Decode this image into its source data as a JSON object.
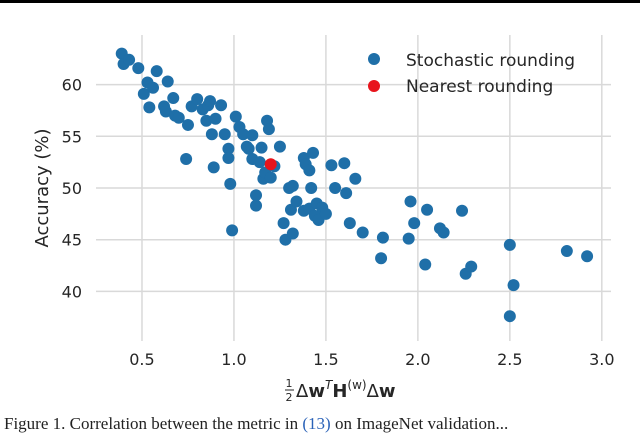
{
  "chart_data": {
    "type": "scatter",
    "title": "",
    "xlabel": {
      "frac_num": "1",
      "frac_den": "2",
      "pre": "Δ",
      "w1": "w",
      "sup1": "T",
      "H": "H",
      "sup2": "(w)",
      "post": "Δ",
      "w2": "w"
    },
    "ylabel": "Accuracy (%)",
    "xlim": [
      0.25,
      3.05
    ],
    "ylim": [
      35.2,
      64.8
    ],
    "x_ticks": [
      0.5,
      1.0,
      1.5,
      2.0,
      2.5,
      3.0
    ],
    "x_tick_labels": [
      "0.5",
      "1.0",
      "1.5",
      "2.0",
      "2.5",
      "3.0"
    ],
    "y_ticks": [
      40,
      45,
      50,
      55,
      60
    ],
    "y_tick_labels": [
      "40",
      "45",
      "50",
      "55",
      "60"
    ],
    "grid": true,
    "legend_position": "top-right",
    "series": [
      {
        "name": "Stochastic rounding",
        "color": "#1f6fa8",
        "points": [
          [
            0.39,
            63.0
          ],
          [
            0.4,
            62.0
          ],
          [
            0.43,
            62.4
          ],
          [
            0.48,
            61.6
          ],
          [
            0.51,
            59.1
          ],
          [
            0.53,
            60.2
          ],
          [
            0.54,
            57.8
          ],
          [
            0.56,
            59.7
          ],
          [
            0.58,
            61.3
          ],
          [
            0.62,
            57.9
          ],
          [
            0.63,
            57.4
          ],
          [
            0.64,
            60.3
          ],
          [
            0.67,
            58.7
          ],
          [
            0.68,
            57.0
          ],
          [
            0.7,
            56.8
          ],
          [
            0.74,
            52.8
          ],
          [
            0.75,
            56.1
          ],
          [
            0.77,
            57.9
          ],
          [
            0.8,
            58.6
          ],
          [
            0.83,
            57.6
          ],
          [
            0.85,
            56.5
          ],
          [
            0.86,
            58.0
          ],
          [
            0.87,
            58.4
          ],
          [
            0.88,
            55.2
          ],
          [
            0.89,
            52.0
          ],
          [
            0.9,
            56.7
          ],
          [
            0.93,
            58.0
          ],
          [
            0.95,
            55.2
          ],
          [
            0.97,
            53.8
          ],
          [
            0.97,
            52.9
          ],
          [
            0.98,
            50.4
          ],
          [
            0.99,
            45.9
          ],
          [
            1.01,
            56.9
          ],
          [
            1.03,
            55.9
          ],
          [
            1.05,
            55.2
          ],
          [
            1.07,
            54.0
          ],
          [
            1.08,
            53.8
          ],
          [
            1.1,
            52.8
          ],
          [
            1.1,
            55.1
          ],
          [
            1.12,
            49.3
          ],
          [
            1.12,
            48.3
          ],
          [
            1.14,
            52.5
          ],
          [
            1.15,
            53.9
          ],
          [
            1.16,
            50.9
          ],
          [
            1.17,
            51.5
          ],
          [
            1.18,
            56.5
          ],
          [
            1.19,
            55.7
          ],
          [
            1.2,
            51.0
          ],
          [
            1.22,
            52.1
          ],
          [
            1.25,
            54.0
          ],
          [
            1.27,
            46.6
          ],
          [
            1.28,
            45.0
          ],
          [
            1.3,
            50.0
          ],
          [
            1.31,
            47.9
          ],
          [
            1.32,
            50.2
          ],
          [
            1.32,
            45.6
          ],
          [
            1.34,
            48.7
          ],
          [
            1.38,
            52.9
          ],
          [
            1.38,
            47.8
          ],
          [
            1.39,
            52.3
          ],
          [
            1.41,
            51.7
          ],
          [
            1.41,
            48.0
          ],
          [
            1.42,
            50.0
          ],
          [
            1.43,
            53.4
          ],
          [
            1.44,
            47.3
          ],
          [
            1.45,
            48.5
          ],
          [
            1.46,
            46.9
          ],
          [
            1.48,
            48.1
          ],
          [
            1.5,
            47.5
          ],
          [
            1.53,
            52.2
          ],
          [
            1.55,
            50.0
          ],
          [
            1.6,
            52.4
          ],
          [
            1.61,
            49.5
          ],
          [
            1.63,
            46.6
          ],
          [
            1.66,
            50.9
          ],
          [
            1.7,
            45.7
          ],
          [
            1.8,
            43.2
          ],
          [
            1.81,
            45.2
          ],
          [
            1.95,
            45.1
          ],
          [
            1.96,
            48.7
          ],
          [
            1.98,
            46.6
          ],
          [
            2.04,
            42.6
          ],
          [
            2.05,
            47.9
          ],
          [
            2.12,
            46.1
          ],
          [
            2.14,
            45.7
          ],
          [
            2.24,
            47.8
          ],
          [
            2.26,
            41.7
          ],
          [
            2.29,
            42.4
          ],
          [
            2.5,
            44.5
          ],
          [
            2.5,
            37.6
          ],
          [
            2.52,
            40.6
          ],
          [
            2.81,
            43.9
          ],
          [
            2.92,
            43.4
          ]
        ]
      },
      {
        "name": "Nearest rounding",
        "color": "#e8141c",
        "points": [
          [
            1.2,
            52.3
          ]
        ]
      }
    ]
  },
  "caption": {
    "text_before": "Figure 1. Correlation between the metric in ",
    "ref": "(13)",
    "text_after": " on ImageNet validation..."
  }
}
